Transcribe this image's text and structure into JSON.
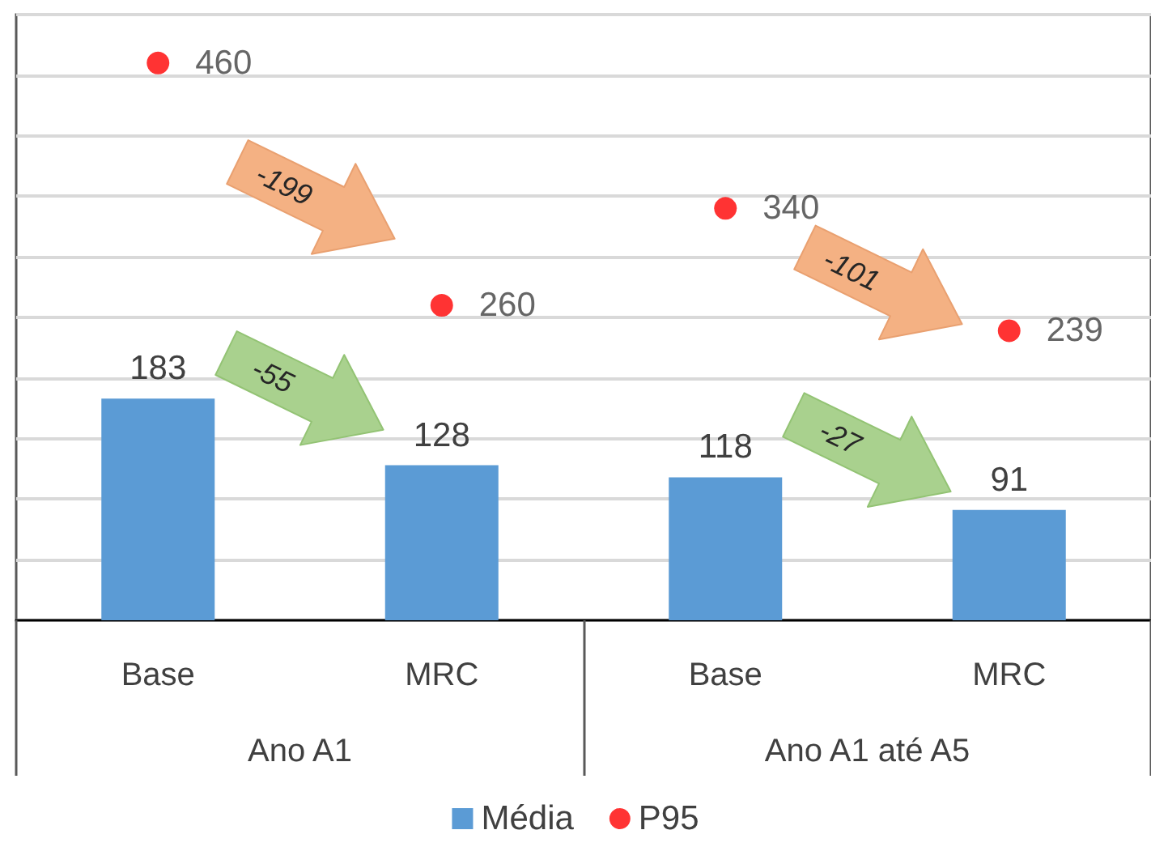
{
  "chart_data": {
    "type": "bar",
    "categories": [
      "Base",
      "MRC",
      "Base",
      "MRC"
    ],
    "series": [
      {
        "name": "Média",
        "color": "#5b9bd5",
        "values": [
          183,
          128,
          118,
          91
        ]
      },
      {
        "name": "P95",
        "type": "scatter",
        "color": "#ff0000",
        "values": [
          460,
          260,
          340,
          239
        ]
      }
    ],
    "ylim": [
      0,
      500
    ],
    "yticks": [
      {
        "value": 0,
        "label": null
      },
      {
        "value": 50,
        "label": null
      },
      {
        "value": 100,
        "label": null
      },
      {
        "value": 150,
        "label": null
      },
      {
        "value": 200,
        "label": null
      },
      {
        "value": 250,
        "label": null
      },
      {
        "value": 300,
        "label": null
      },
      {
        "value": 350,
        "label": null
      },
      {
        "value": 400,
        "label": null
      },
      {
        "value": 450,
        "label": null
      },
      {
        "value": 500,
        "label": null
      }
    ],
    "tick_labels": "x",
    "grid": "y",
    "legend": "bottom",
    "data_labels": true,
    "marker": "circle",
    "annotations": [
      "Ano A1",
      "Ano A1 até A5",
      "-199",
      "-55",
      "-101",
      "-27"
    ]
  }
}
